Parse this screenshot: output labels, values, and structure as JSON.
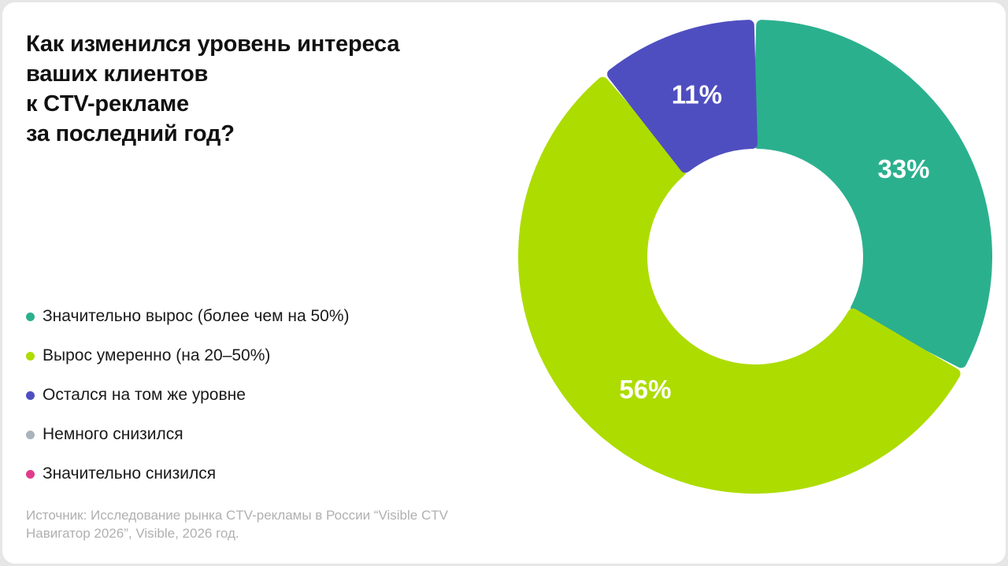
{
  "title": "Как изменился уровень интереса\nваших клиентов\nк CTV-рекламе\nза последний год?",
  "source": "Источник: Исследование рынка CTV-рекламы в России “Visible CTV\nНавигатор 2026”, Visible, 2026 год.",
  "colors": {
    "significant_growth": "#2bb08e",
    "moderate_growth": "#addc00",
    "same_level": "#4f4ec0",
    "slight_decrease": "#a9b4bd",
    "significant_decrease": "#e03c8a"
  },
  "chart_data": {
    "type": "pie",
    "style": "donut",
    "legend_position": "left",
    "categories": [
      "Значительно вырос (более чем на 50%)",
      "Вырос умеренно (на 20–50%)",
      "Остался на том же уровне",
      "Немного снизился",
      "Значительно снизился"
    ],
    "values": [
      33,
      56,
      11,
      0,
      0
    ],
    "labels": [
      "33%",
      "56%",
      "11%",
      "",
      ""
    ],
    "colors": [
      "#2bb08e",
      "#addc00",
      "#4f4ec0",
      "#a9b4bd",
      "#e03c8a"
    ]
  }
}
